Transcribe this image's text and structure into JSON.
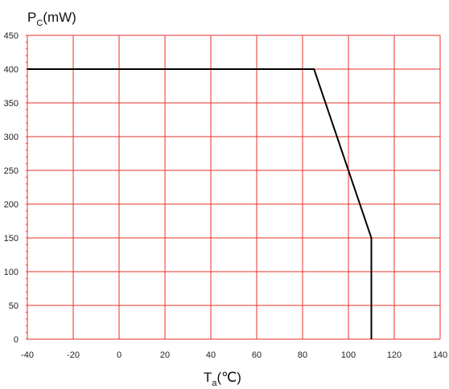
{
  "chart_data": {
    "type": "line",
    "title": "",
    "ylabel_main": "P",
    "ylabel_sub": "C",
    "ylabel_suffix": "(mW)",
    "xlabel_main": "T",
    "xlabel_sub": "a",
    "xlabel_suffix": "(℃)",
    "xlim": [
      -40,
      140
    ],
    "ylim": [
      0,
      450
    ],
    "x_ticks": [
      -40,
      -20,
      0,
      20,
      40,
      60,
      80,
      100,
      120,
      140
    ],
    "y_ticks": [
      0,
      50,
      100,
      150,
      200,
      250,
      300,
      350,
      400,
      450
    ],
    "grid": true,
    "colors": {
      "grid": "#e8312a",
      "line": "#000000",
      "text": "#222222"
    },
    "series": [
      {
        "points": [
          {
            "x": -40,
            "y": 400
          },
          {
            "x": 85,
            "y": 400
          },
          {
            "x": 110,
            "y": 150
          },
          {
            "x": 110,
            "y": 0
          }
        ]
      }
    ]
  }
}
